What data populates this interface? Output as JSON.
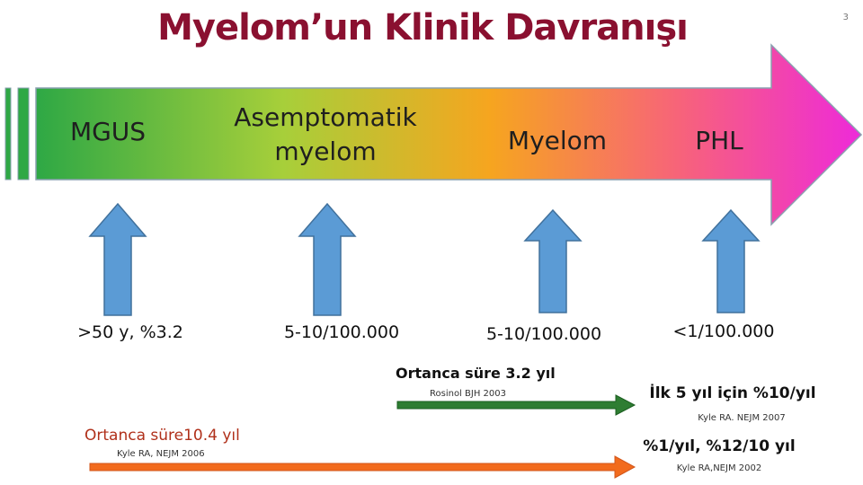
{
  "slide": {
    "title": "Myelom’un Klinik Davranışı",
    "number": "3"
  },
  "stages": [
    {
      "label": "MGUS"
    },
    {
      "label": "Asemptomatik\nmyelom"
    },
    {
      "label": "Myelom"
    },
    {
      "label": "PHL"
    }
  ],
  "incidences": [
    ">50 y, %3.2",
    "5-10/100.000",
    "5-10/100.000",
    "<1/100.000"
  ],
  "notes": {
    "green": {
      "title": "Ortanca süre 3.2 yıl",
      "ref": "Rosinol BJH 2003"
    },
    "orange": {
      "title": "Ortanca süre10.4 yıl",
      "ref": "Kyle RA, NEJM 2006"
    },
    "right1": {
      "title": "İlk 5 yıl için %10/yıl",
      "ref": "Kyle  RA. NEJM 2007"
    },
    "right2": {
      "title": "%1/yıl, %12/10 yıl",
      "ref": "Kyle RA,NEJM 2002"
    }
  },
  "colors": {
    "title": "#8a1030",
    "up_arrow": "#5b9bd5",
    "green_arrow": "#2e7d32",
    "orange_arrow": "#f26b1d"
  }
}
